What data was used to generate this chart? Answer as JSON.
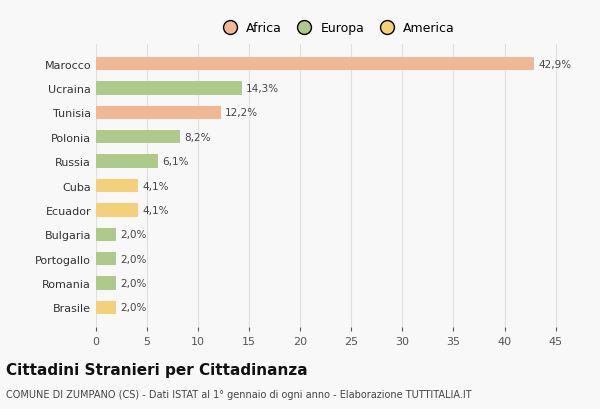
{
  "categories": [
    "Marocco",
    "Ucraina",
    "Tunisia",
    "Polonia",
    "Russia",
    "Cuba",
    "Ecuador",
    "Bulgaria",
    "Portogallo",
    "Romania",
    "Brasile"
  ],
  "values": [
    42.9,
    14.3,
    12.2,
    8.2,
    6.1,
    4.1,
    4.1,
    2.0,
    2.0,
    2.0,
    2.0
  ],
  "labels": [
    "42,9%",
    "14,3%",
    "12,2%",
    "8,2%",
    "6,1%",
    "4,1%",
    "4,1%",
    "2,0%",
    "2,0%",
    "2,0%",
    "2,0%"
  ],
  "colors": [
    "#F2B896",
    "#AECA8A",
    "#F2B896",
    "#AECA8A",
    "#AECA8A",
    "#F5D07A",
    "#F5D07A",
    "#AECA8A",
    "#AECA8A",
    "#AECA8A",
    "#F5D07A"
  ],
  "legend_labels": [
    "Africa",
    "Europa",
    "America"
  ],
  "legend_colors": [
    "#F2B896",
    "#AECA8A",
    "#F5D07A"
  ],
  "title": "Cittadini Stranieri per Cittadinanza",
  "subtitle": "COMUNE DI ZUMPANO (CS) - Dati ISTAT al 1° gennaio di ogni anno - Elaborazione TUTTITALIA.IT",
  "xlim": [
    0,
    47
  ],
  "xticks": [
    0,
    5,
    10,
    15,
    20,
    25,
    30,
    35,
    40,
    45
  ],
  "background_color": "#F8F8F8",
  "grid_color": "#E0E0E0",
  "title_fontsize": 11,
  "subtitle_fontsize": 7,
  "label_fontsize": 7.5,
  "tick_fontsize": 8,
  "legend_fontsize": 9,
  "bar_height": 0.55
}
